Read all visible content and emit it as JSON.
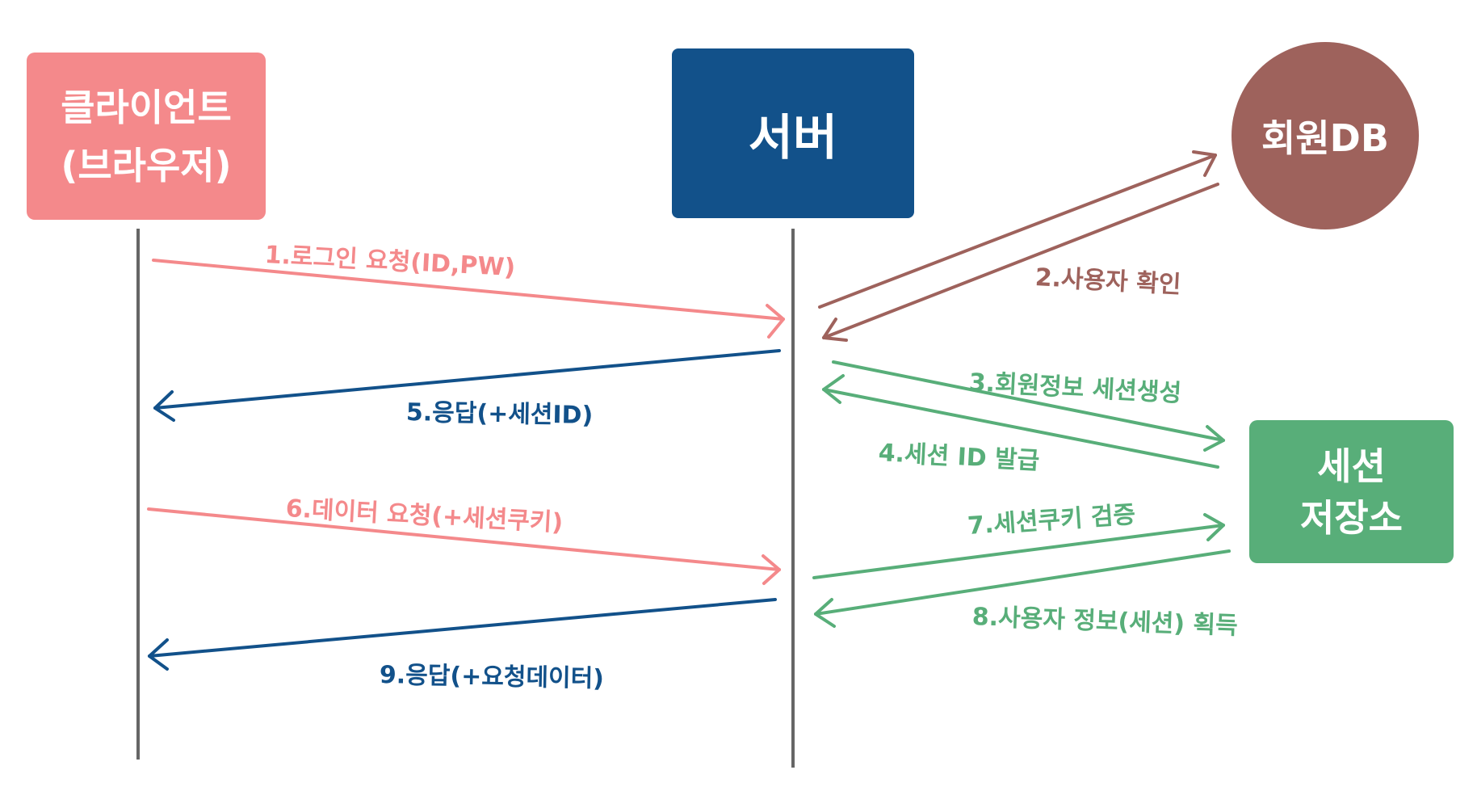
{
  "actors": {
    "client": {
      "label": "클라이언트\n(브라우저)",
      "color": "#F4898B"
    },
    "server": {
      "label": "서버",
      "color": "#12518A"
    },
    "member_db": {
      "label": "회원DB",
      "color": "#9E625C"
    },
    "session_store": {
      "label": "세션\n저장소",
      "color": "#58AE79"
    }
  },
  "lifeline_color": "#666666",
  "messages": [
    {
      "step": 1,
      "label": "1.로그인 요청(ID,PW)",
      "from": "client",
      "to": "server",
      "color": "#F4898B"
    },
    {
      "step": 2,
      "label": "2.사용자 확인",
      "from": "server",
      "to": "member_db",
      "color": "#9E625C"
    },
    {
      "step": 3,
      "label": "3.회원정보 세션생성",
      "from": "server",
      "to": "session_store",
      "color": "#58AE79"
    },
    {
      "step": 4,
      "label": "4.세션 ID 발급",
      "from": "session_store",
      "to": "server",
      "color": "#58AE79"
    },
    {
      "step": 5,
      "label": "5.응답(+세션ID)",
      "from": "server",
      "to": "client",
      "color": "#12518A"
    },
    {
      "step": 6,
      "label": "6.데이터 요청(+세션쿠키)",
      "from": "client",
      "to": "server",
      "color": "#F4898B"
    },
    {
      "step": 7,
      "label": "7.세션쿠키 검증",
      "from": "server",
      "to": "session_store",
      "color": "#58AE79"
    },
    {
      "step": 8,
      "label": "8.사용자 정보(세션) 획득",
      "from": "session_store",
      "to": "server",
      "color": "#58AE79"
    },
    {
      "step": 9,
      "label": "9.응답(+요청데이터)",
      "from": "server",
      "to": "client",
      "color": "#12518A"
    }
  ]
}
